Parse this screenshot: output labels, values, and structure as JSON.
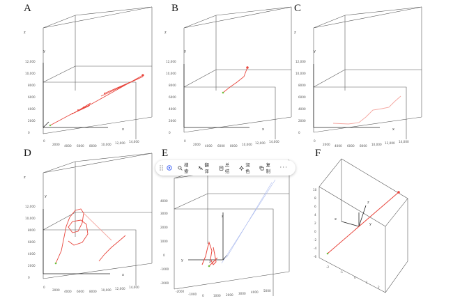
{
  "panels": [
    {
      "id": "A",
      "label": "A",
      "x_ticks": [
        "0",
        "2000",
        "4000",
        "6000",
        "8000",
        "10,000",
        "12,000",
        "14,000"
      ],
      "z_ticks": [
        "0",
        "2000",
        "4000",
        "6000",
        "8000",
        "10,000",
        "12,000"
      ],
      "axis_x": "x",
      "axis_y": "y",
      "axis_z": "z"
    },
    {
      "id": "B",
      "label": "B",
      "x_ticks": [
        "0",
        "2000",
        "4000",
        "6000",
        "8000",
        "10,000",
        "12,000",
        "14,000"
      ],
      "z_ticks": [
        "0",
        "2000",
        "4000",
        "6000",
        "8000",
        "10,000",
        "12,000"
      ],
      "axis_x": "x",
      "axis_y": "y",
      "axis_z": "z"
    },
    {
      "id": "C",
      "label": "C",
      "x_ticks": [
        "0",
        "2000",
        "4000",
        "6000",
        "8000",
        "10,000",
        "12,000",
        "14,000"
      ],
      "z_ticks": [
        "0",
        "2000",
        "4000",
        "6000",
        "8000",
        "10,000",
        "12,000"
      ],
      "axis_x": "x",
      "axis_y": "y",
      "axis_z": "z"
    },
    {
      "id": "D",
      "label": "D",
      "x_ticks": [
        "0",
        "2000",
        "4000",
        "6000",
        "8000",
        "10,000",
        "12,000",
        "14,000"
      ],
      "z_ticks": [
        "0",
        "2000",
        "4000",
        "6000",
        "8000",
        "10,000",
        "12,000"
      ],
      "axis_x": "x",
      "axis_y": "y",
      "axis_z": "z"
    },
    {
      "id": "E",
      "label": "E",
      "x_ticks": [
        "-2000",
        "-1000",
        "0",
        "1000",
        "2000",
        "3000",
        "4000",
        "5000"
      ],
      "z_ticks": [
        "-2000",
        "-1000",
        "0",
        "1000",
        "2000",
        "3000",
        "4000"
      ],
      "axis_x": "x",
      "axis_y": "y",
      "axis_z": "z"
    },
    {
      "id": "F",
      "label": "F",
      "x_ticks": [
        "-2",
        "-1",
        "0",
        "1",
        "2"
      ],
      "z_ticks": [
        "-6",
        "-4",
        "-2",
        "0",
        "2",
        "4",
        "6",
        "8",
        "10"
      ],
      "axis_x": "x",
      "axis_y": "y",
      "axis_z": "z"
    }
  ],
  "toolbar": {
    "search_label": "搜索",
    "translate_label": "翻译",
    "summary_label": "总结",
    "polish_label": "润色",
    "copy_label": "复制",
    "more_label": "···"
  },
  "colors": {
    "trajectory": "#e8453c",
    "trajectory_light": "#f4a6a0",
    "axis": "#333333",
    "box": "#555555",
    "start_marker": "#6cbf3a",
    "toolbar_icon": "#4a6cf7"
  }
}
